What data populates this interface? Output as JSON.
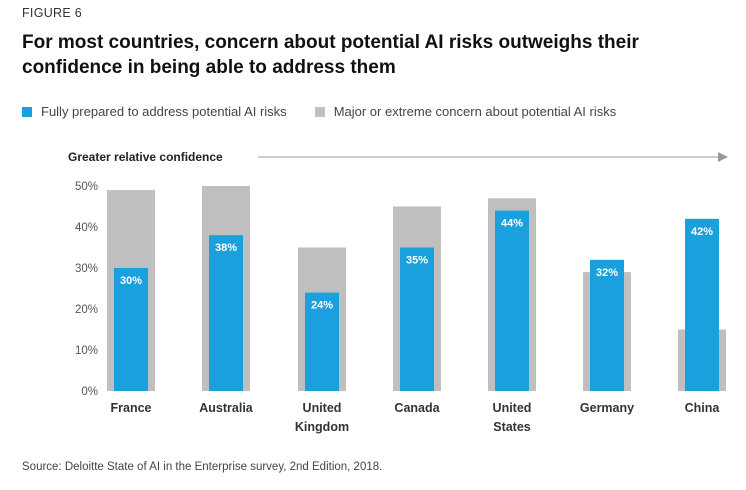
{
  "figure_label": "FIGURE 6",
  "title": "For most countries, concern about potential AI risks outweighs their confidence in being able to address them",
  "source": "Source: Deloitte State of AI in the Enterprise survey, 2nd Edition, 2018.",
  "colors": {
    "prepared": "#1aa0dc",
    "concern": "#bfbfbf",
    "arrow": "#999999"
  },
  "chart_data": {
    "type": "bar",
    "categories": [
      [
        "France"
      ],
      [
        "Australia"
      ],
      [
        "United",
        "Kingdom"
      ],
      [
        "Canada"
      ],
      [
        "United",
        "States"
      ],
      [
        "Germany"
      ],
      [
        "China"
      ]
    ],
    "series": [
      {
        "name": "Fully prepared to address potential AI risks",
        "values": [
          30,
          38,
          24,
          35,
          44,
          32,
          42
        ],
        "labels": [
          "30%",
          "38%",
          "24%",
          "35%",
          "44%",
          "32%",
          "42%"
        ]
      },
      {
        "name": "Major or extreme concern about potential AI risks",
        "values": [
          49,
          50,
          35,
          45,
          47,
          29,
          15
        ]
      }
    ],
    "ylim": [
      0,
      50
    ],
    "yticks": [
      "0%",
      "10%",
      "20%",
      "30%",
      "40%",
      "50%"
    ],
    "annotation": "Greater relative confidence",
    "legend_position": "top-left"
  }
}
